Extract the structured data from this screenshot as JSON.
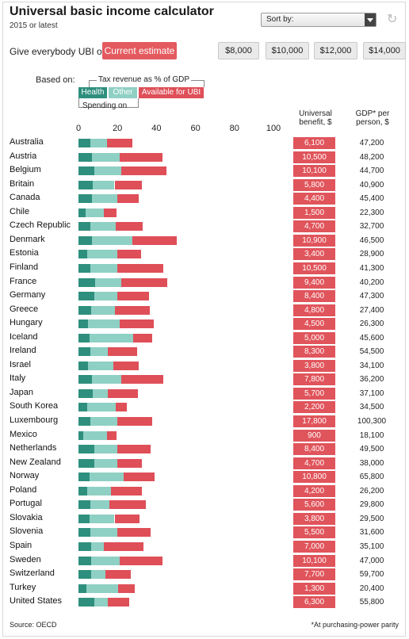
{
  "header": {
    "title": "Universal basic income calculator",
    "subtitle": "2015 or latest",
    "sort_label": "Sort by:"
  },
  "controls": {
    "give_label": "Give everybody UBI of:",
    "current_label": "Current estimate",
    "amounts": [
      "$8,000",
      "$10,000",
      "$12,000",
      "$14,000"
    ]
  },
  "legend": {
    "based_on": "Based on:",
    "tax_revenue": "Tax revenue as % of GDP",
    "health": "Health",
    "other": "Other",
    "available": "Available for UBI",
    "spending_on": "Spending on"
  },
  "columns": {
    "benefit_header_1": "Universal",
    "benefit_header_2": "benefit, $",
    "gdp_header_1": "GDP* per",
    "gdp_header_2": "person, $"
  },
  "footer": {
    "source": "Source: OECD",
    "footnote": "*At purchasing-power parity"
  },
  "colors": {
    "health": "#2f8f7e",
    "other": "#8fd0c4",
    "available": "#df4f58",
    "current_button": "#e35a5f"
  },
  "chart_data": {
    "type": "bar",
    "orientation": "horizontal",
    "stacked": true,
    "xlim": [
      0,
      100
    ],
    "xticks": [
      0,
      20,
      40,
      60,
      80,
      100
    ],
    "series_names": [
      "Health",
      "Other",
      "Available for UBI"
    ],
    "rows": [
      {
        "country": "Australia",
        "health": 6,
        "other": 8.5,
        "ubi": 13,
        "benefit": "6,100",
        "gdp": "47,200"
      },
      {
        "country": "Austria",
        "health": 7,
        "other": 14,
        "ubi": 22,
        "benefit": "10,500",
        "gdp": "48,200"
      },
      {
        "country": "Belgium",
        "health": 8,
        "other": 14,
        "ubi": 23,
        "benefit": "10,100",
        "gdp": "44,700"
      },
      {
        "country": "Britain",
        "health": 7.5,
        "other": 11,
        "ubi": 14,
        "benefit": "5,800",
        "gdp": "40,900"
      },
      {
        "country": "Canada",
        "health": 7,
        "other": 13,
        "ubi": 11,
        "benefit": "4,400",
        "gdp": "45,400"
      },
      {
        "country": "Chile",
        "health": 3.5,
        "other": 9.5,
        "ubi": 6.5,
        "benefit": "1,500",
        "gdp": "22,300"
      },
      {
        "country": "Czech Republic",
        "health": 6,
        "other": 13,
        "ubi": 14,
        "benefit": "4,700",
        "gdp": "32,700"
      },
      {
        "country": "Denmark",
        "health": 7,
        "other": 20.5,
        "ubi": 23,
        "benefit": "10,900",
        "gdp": "46,500"
      },
      {
        "country": "Estonia",
        "health": 4.5,
        "other": 15.5,
        "ubi": 12,
        "benefit": "3,400",
        "gdp": "28,900"
      },
      {
        "country": "Finland",
        "health": 6,
        "other": 14,
        "ubi": 23.5,
        "benefit": "10,500",
        "gdp": "41,300"
      },
      {
        "country": "France",
        "health": 8.5,
        "other": 13.5,
        "ubi": 23.5,
        "benefit": "9,400",
        "gdp": "40,200"
      },
      {
        "country": "Germany",
        "health": 8,
        "other": 12,
        "ubi": 16,
        "benefit": "8,400",
        "gdp": "47,300"
      },
      {
        "country": "Greece",
        "health": 6.5,
        "other": 12,
        "ubi": 18,
        "benefit": "4,800",
        "gdp": "27,400"
      },
      {
        "country": "Hungary",
        "health": 5,
        "other": 16,
        "ubi": 17.5,
        "benefit": "4,500",
        "gdp": "26,300"
      },
      {
        "country": "Iceland",
        "health": 5.5,
        "other": 22.5,
        "ubi": 10,
        "benefit": "5,000",
        "gdp": "45,600"
      },
      {
        "country": "Ireland",
        "health": 6,
        "other": 9,
        "ubi": 15,
        "benefit": "8,300",
        "gdp": "54,500"
      },
      {
        "country": "Israel",
        "health": 5,
        "other": 13,
        "ubi": 13,
        "benefit": "3,800",
        "gdp": "34,100"
      },
      {
        "country": "Italy",
        "health": 7,
        "other": 15,
        "ubi": 21.5,
        "benefit": "7,800",
        "gdp": "36,200"
      },
      {
        "country": "Japan",
        "health": 7.5,
        "other": 7.5,
        "ubi": 15.5,
        "benefit": "5,700",
        "gdp": "37,100"
      },
      {
        "country": "South Korea",
        "health": 4.5,
        "other": 14.5,
        "ubi": 6,
        "benefit": "2,200",
        "gdp": "34,500"
      },
      {
        "country": "Luxembourg",
        "health": 6,
        "other": 14,
        "ubi": 18,
        "benefit": "17,800",
        "gdp": "100,300"
      },
      {
        "country": "Mexico",
        "health": 2.5,
        "other": 12,
        "ubi": 5,
        "benefit": "900",
        "gdp": "18,100"
      },
      {
        "country": "Netherlands",
        "health": 8,
        "other": 12,
        "ubi": 17,
        "benefit": "8,400",
        "gdp": "49,500"
      },
      {
        "country": "New Zealand",
        "health": 8,
        "other": 12,
        "ubi": 12.5,
        "benefit": "4,700",
        "gdp": "38,000"
      },
      {
        "country": "Norway",
        "health": 5.5,
        "other": 17.5,
        "ubi": 16,
        "benefit": "10,800",
        "gdp": "65,800"
      },
      {
        "country": "Poland",
        "health": 4.5,
        "other": 12,
        "ubi": 16,
        "benefit": "4,200",
        "gdp": "26,200"
      },
      {
        "country": "Portugal",
        "health": 6,
        "other": 10,
        "ubi": 18.5,
        "benefit": "5,600",
        "gdp": "29,800"
      },
      {
        "country": "Slovakia",
        "health": 5.5,
        "other": 13,
        "ubi": 13,
        "benefit": "3,800",
        "gdp": "29,500"
      },
      {
        "country": "Slovenia",
        "health": 6,
        "other": 14,
        "ubi": 17,
        "benefit": "5,500",
        "gdp": "31,600"
      },
      {
        "country": "Spain",
        "health": 6.5,
        "other": 6.5,
        "ubi": 20.5,
        "benefit": "7,000",
        "gdp": "35,100"
      },
      {
        "country": "Sweden",
        "health": 6.5,
        "other": 14.5,
        "ubi": 22,
        "benefit": "10,100",
        "gdp": "47,000"
      },
      {
        "country": "Switzerland",
        "health": 6.5,
        "other": 7.5,
        "ubi": 13,
        "benefit": "7,700",
        "gdp": "59,700"
      },
      {
        "country": "Turkey",
        "health": 4,
        "other": 16.5,
        "ubi": 8.5,
        "benefit": "1,300",
        "gdp": "20,400"
      },
      {
        "country": "United States",
        "health": 8,
        "other": 7,
        "ubi": 11,
        "benefit": "6,300",
        "gdp": "55,800"
      }
    ]
  }
}
